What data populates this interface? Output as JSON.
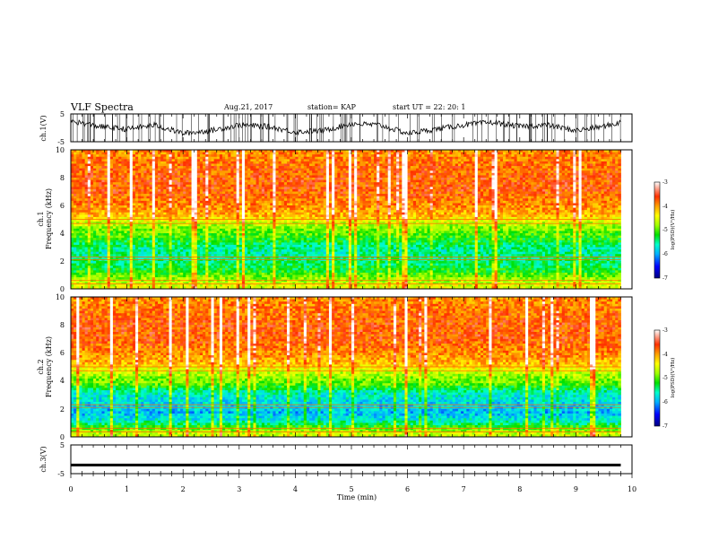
{
  "header": {
    "title": "VLF Spectra",
    "date": "Aug.21, 2017",
    "station": "station= KAP",
    "start_ut": "start  UT  =   22: 20: 1"
  },
  "colors": {
    "colormap": [
      "#000080",
      "#0000ff",
      "#00b0ff",
      "#00ffcc",
      "#00e000",
      "#a0ff00",
      "#ffff00",
      "#ffa000",
      "#ff3000",
      "#ffffff"
    ],
    "waveform": "#000000",
    "axes": "#000000"
  },
  "chart_data": [
    {
      "type": "line",
      "panel": "ch1-waveform",
      "ylabel": "ch.1(V)",
      "ylim": [
        -5,
        5
      ],
      "yticks": [
        "5",
        "-5"
      ],
      "x": [
        0,
        0.5,
        1,
        1.5,
        2,
        2.5,
        3,
        3.5,
        4,
        4.5,
        5,
        5.5,
        6,
        6.5,
        7,
        7.5,
        8,
        8.5,
        9,
        9.5,
        9.8
      ],
      "values": [
        2.5,
        0.5,
        -0.5,
        1.0,
        -2.0,
        -1.0,
        1.0,
        0.5,
        -1.5,
        -1.0,
        1.5,
        1.0,
        -2.0,
        -0.5,
        1.0,
        2.0,
        0.5,
        1.0,
        -1.0,
        0.5,
        2.0
      ]
    },
    {
      "type": "heatmap",
      "panel": "ch1-spectrogram",
      "ylabel": "ch.1",
      "ylabel2": "Frequency  (kHz)",
      "ylim": [
        0,
        10
      ],
      "yticks": [
        "0",
        "2",
        "4",
        "6",
        "8",
        "10"
      ],
      "colorbar": {
        "label": "log(PSD)(V²/Hz)",
        "range": [
          -7,
          -3
        ],
        "ticks": [
          "-3",
          "-4",
          "-5",
          "-6",
          "-7"
        ]
      },
      "freq_khz": [
        0.25,
        0.75,
        1.25,
        1.75,
        2.25,
        2.75,
        3.25,
        3.75,
        4.25,
        4.75,
        5.25,
        6.0,
        7.0,
        8.0,
        9.0,
        9.75
      ],
      "log_psd": [
        -4.5,
        -4.8,
        -5.2,
        -5.4,
        -5.5,
        -5.6,
        -5.4,
        -5.1,
        -4.9,
        -4.6,
        -4.0,
        -3.8,
        -3.6,
        -3.6,
        -3.7,
        -3.8
      ]
    },
    {
      "type": "heatmap",
      "panel": "ch2-spectrogram",
      "ylabel": "ch.2",
      "ylabel2": "Frequency  (kHz)",
      "ylim": [
        0,
        10
      ],
      "yticks": [
        "0",
        "2",
        "4",
        "6",
        "8",
        "10"
      ],
      "colorbar": {
        "label": "log(PSD)(V²/Hz)",
        "range": [
          -7,
          -3
        ],
        "ticks": [
          "-3",
          "-4",
          "-5",
          "-6",
          "-7"
        ]
      },
      "freq_khz": [
        0.25,
        0.75,
        1.25,
        1.75,
        2.25,
        2.75,
        3.25,
        3.75,
        4.25,
        4.75,
        5.25,
        6.0,
        7.0,
        8.0,
        9.0,
        9.75
      ],
      "log_psd": [
        -4.6,
        -5.2,
        -5.8,
        -6.0,
        -5.9,
        -5.8,
        -5.6,
        -5.0,
        -4.8,
        -4.5,
        -4.0,
        -3.8,
        -3.6,
        -3.6,
        -3.7,
        -3.8
      ]
    },
    {
      "type": "line",
      "panel": "ch3-waveform",
      "ylabel": "ch.3(V)",
      "ylim": [
        -5,
        5
      ],
      "yticks": [
        "5",
        "-5"
      ],
      "x": [
        0,
        9.8
      ],
      "values": [
        -2,
        -2
      ]
    }
  ],
  "xaxis": {
    "label": "Time  (min)",
    "xlim": [
      0,
      10
    ],
    "ticks": [
      "0",
      "1",
      "2",
      "3",
      "4",
      "5",
      "6",
      "7",
      "8",
      "9",
      "10"
    ]
  }
}
